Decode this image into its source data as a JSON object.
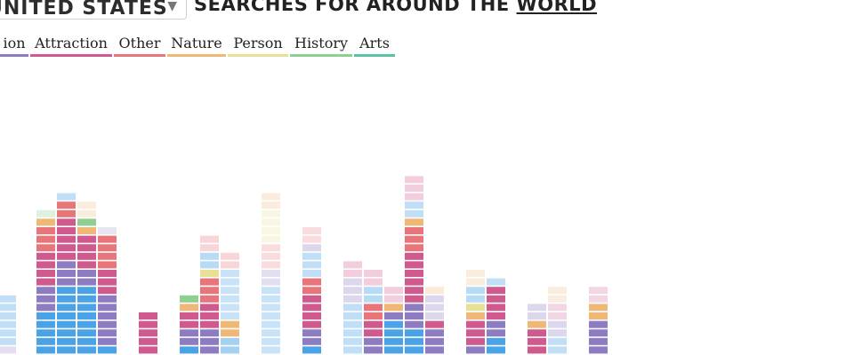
{
  "header": {
    "select_value": "UNITED STATES",
    "headline_prefix": "SEARCHES FOR AROUND THE",
    "headline_world": "WORLD"
  },
  "icons": {
    "caret": "chevron-down-icon"
  },
  "legend": [
    {
      "label": "ion",
      "color": "#8e7cc3"
    },
    {
      "label": "Attraction",
      "color": "#d05a8e"
    },
    {
      "label": "Other",
      "color": "#e8757a"
    },
    {
      "label": "Nature",
      "color": "#f0b877"
    },
    {
      "label": "Person",
      "color": "#e8e093"
    },
    {
      "label": "History",
      "color": "#8fcf92"
    },
    {
      "label": "Arts",
      "color": "#59c3a6"
    }
  ],
  "colors": {
    "Location": "#8e7cc3",
    "Attraction": "#d05a8e",
    "Other": "#e8757a",
    "Nature": "#f0b877",
    "Person": "#e8e093",
    "History": "#8fcf92",
    "Arts": "#59c3a6",
    "Sky": "#4aa3e6"
  },
  "chart_data": {
    "type": "bar",
    "stacked": true,
    "grid": false,
    "xlabel": "",
    "ylabel": "",
    "columns": [
      {
        "segments": [
          [
            "Location",
            1,
            0.25
          ],
          [
            "Sky",
            6,
            0.35
          ]
        ]
      },
      {
        "segments": [
          [
            "Sky",
            5,
            1
          ],
          [
            "Location",
            3,
            1
          ],
          [
            "Attraction",
            4,
            1
          ],
          [
            "Other",
            3,
            1
          ],
          [
            "Nature",
            1,
            1
          ],
          [
            "History",
            1,
            0.3
          ]
        ]
      },
      {
        "segments": [
          [
            "Sky",
            8,
            1
          ],
          [
            "Location",
            3,
            1
          ],
          [
            "Attraction",
            5,
            1
          ],
          [
            "Other",
            2,
            1
          ],
          [
            "Sky",
            1,
            0.35
          ]
        ]
      },
      {
        "segments": [
          [
            "Sky",
            8,
            1
          ],
          [
            "Location",
            2,
            1
          ],
          [
            "Attraction",
            4,
            1
          ],
          [
            "Nature",
            1,
            1
          ],
          [
            "History",
            1,
            1
          ],
          [
            "Nature",
            2,
            0.25
          ]
        ]
      },
      {
        "segments": [
          [
            "Sky",
            1,
            1
          ],
          [
            "Location",
            6,
            1
          ],
          [
            "Attraction",
            3,
            1
          ],
          [
            "Other",
            4,
            1
          ],
          [
            "Location",
            1,
            0.2
          ]
        ]
      },
      {
        "segments": [
          [
            "Attraction",
            5,
            1
          ]
        ]
      },
      {
        "segments": [
          [
            "Sky",
            1,
            1
          ],
          [
            "Location",
            2,
            1
          ],
          [
            "Attraction",
            2,
            1
          ],
          [
            "Nature",
            1,
            1
          ],
          [
            "History",
            1,
            1
          ]
        ]
      },
      {
        "segments": [
          [
            "Location",
            3,
            1
          ],
          [
            "Attraction",
            3,
            1
          ],
          [
            "Other",
            3,
            1
          ],
          [
            "Person",
            1,
            1
          ],
          [
            "Sky",
            2,
            0.4
          ],
          [
            "Other",
            2,
            0.3
          ]
        ]
      },
      {
        "segments": [
          [
            "Sky",
            2,
            0.5
          ],
          [
            "Nature",
            2,
            1
          ],
          [
            "Sky",
            6,
            0.3
          ],
          [
            "Other",
            2,
            0.3
          ]
        ]
      },
      {
        "segments": [
          [
            "Sky",
            8,
            0.3
          ],
          [
            "Location",
            2,
            0.25
          ],
          [
            "Other",
            3,
            0.25
          ],
          [
            "Person",
            4,
            0.25
          ],
          [
            "Nature",
            2,
            0.25
          ]
        ]
      },
      {
        "segments": [
          [
            "Sky",
            1,
            1
          ],
          [
            "Location",
            2,
            1
          ],
          [
            "Attraction",
            4,
            1
          ],
          [
            "Other",
            2,
            1
          ],
          [
            "Sky",
            3,
            0.35
          ],
          [
            "Location",
            1,
            0.3
          ],
          [
            "Other",
            2,
            0.25
          ]
        ]
      },
      {
        "segments": [
          [
            "Sky",
            6,
            0.35
          ],
          [
            "Location",
            3,
            0.3
          ],
          [
            "Attraction",
            2,
            0.3
          ]
        ]
      },
      {
        "segments": [
          [
            "Location",
            2,
            1
          ],
          [
            "Attraction",
            2,
            1
          ],
          [
            "Other",
            2,
            1
          ],
          [
            "Sky",
            2,
            0.4
          ],
          [
            "Attraction",
            2,
            0.3
          ]
        ]
      },
      {
        "segments": [
          [
            "Sky",
            4,
            1
          ],
          [
            "Location",
            1,
            1
          ],
          [
            "Nature",
            1,
            1
          ],
          [
            "Attraction",
            2,
            0.3
          ]
        ]
      },
      {
        "segments": [
          [
            "Sky",
            3,
            1
          ],
          [
            "Location",
            3,
            1
          ],
          [
            "Attraction",
            6,
            1
          ],
          [
            "Other",
            3,
            1
          ],
          [
            "Nature",
            1,
            1
          ],
          [
            "Sky",
            2,
            0.35
          ],
          [
            "Attraction",
            3,
            0.3
          ]
        ]
      },
      {
        "segments": [
          [
            "Location",
            3,
            1
          ],
          [
            "Attraction",
            1,
            1
          ],
          [
            "Location",
            3,
            0.3
          ],
          [
            "Nature",
            1,
            0.3
          ]
        ]
      },
      {
        "segments": [
          [
            "Location",
            1,
            1
          ],
          [
            "Attraction",
            3,
            1
          ],
          [
            "Nature",
            1,
            1
          ],
          [
            "Person",
            1,
            1
          ],
          [
            "Sky",
            2,
            0.4
          ],
          [
            "Nature",
            2,
            0.25
          ]
        ]
      },
      {
        "segments": [
          [
            "Sky",
            2,
            1
          ],
          [
            "Location",
            2,
            1
          ],
          [
            "Attraction",
            4,
            1
          ],
          [
            "Sky",
            1,
            0.35
          ]
        ]
      },
      {
        "segments": [
          [
            "Attraction",
            3,
            1
          ],
          [
            "Nature",
            1,
            1
          ],
          [
            "Location",
            2,
            0.3
          ]
        ]
      },
      {
        "segments": [
          [
            "Sky",
            2,
            0.35
          ],
          [
            "Location",
            2,
            0.3
          ],
          [
            "Attraction",
            2,
            0.25
          ],
          [
            "Nature",
            2,
            0.25
          ]
        ]
      },
      {
        "segments": [
          [
            "Location",
            4,
            1
          ],
          [
            "Nature",
            2,
            1
          ],
          [
            "Attraction",
            2,
            0.25
          ]
        ]
      }
    ]
  }
}
